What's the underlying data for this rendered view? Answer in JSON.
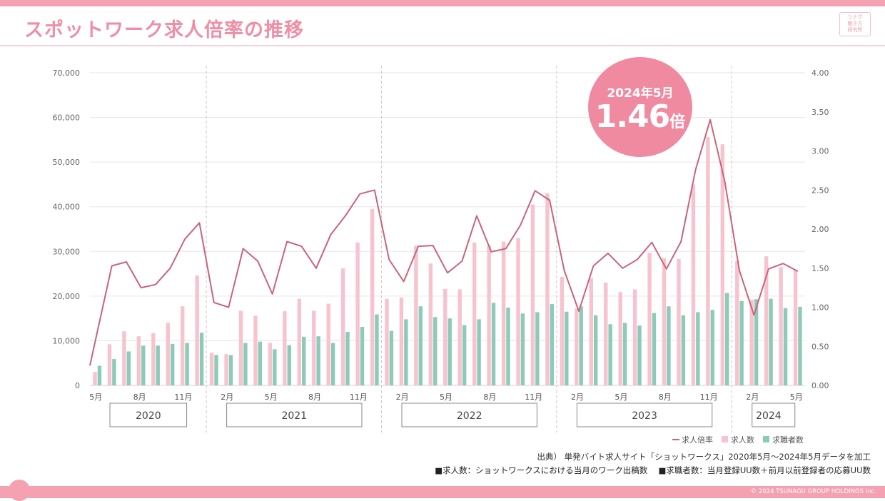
{
  "page": {
    "title": "スポットワーク求人倍率の推移",
    "logo_lines": [
      "ツナグ",
      "働き方",
      "研究所"
    ],
    "source": "出典）  単発バイト求人サイト「ショットワークス」2020年5月～2024年5月データを加工",
    "note": "■求人数：ショットワークスにおける当月のワーク出稿数　 ■求職者数：当月登録UU数＋前月以前登録者の応募UU数",
    "copyright": "© 2024 TSUNAGU GROUP HOLDINGS Inc.",
    "badge": {
      "date_label": "2024年5月",
      "value": "1.46",
      "unit": "倍"
    },
    "colors": {
      "accent": "#f4a1b2",
      "line": "#c9647b",
      "bar_jobs": "#f7c3cf",
      "bar_seekers": "#8ccbb7"
    }
  },
  "chart_data": {
    "type": "bar",
    "combo": "bar+line (line on secondary axis)",
    "title": "スポットワーク求人倍率の推移",
    "x": [
      "2020-05",
      "2020-06",
      "2020-07",
      "2020-08",
      "2020-09",
      "2020-10",
      "2020-11",
      "2020-12",
      "2021-01",
      "2021-02",
      "2021-03",
      "2021-04",
      "2021-05",
      "2021-06",
      "2021-07",
      "2021-08",
      "2021-09",
      "2021-10",
      "2021-11",
      "2021-12",
      "2022-01",
      "2022-02",
      "2022-03",
      "2022-04",
      "2022-05",
      "2022-06",
      "2022-07",
      "2022-08",
      "2022-09",
      "2022-10",
      "2022-11",
      "2022-12",
      "2023-01",
      "2023-02",
      "2023-03",
      "2023-04",
      "2023-05",
      "2023-06",
      "2023-07",
      "2023-08",
      "2023-09",
      "2023-10",
      "2023-11",
      "2023-12",
      "2024-01",
      "2024-02",
      "2024-03",
      "2024-04",
      "2024-05"
    ],
    "tick_labels": [
      {
        "month_index": 0,
        "label": "5月"
      },
      {
        "month_index": 3,
        "label": "8月"
      },
      {
        "month_index": 6,
        "label": "11月"
      },
      {
        "month_index": 9,
        "label": "2月"
      },
      {
        "month_index": 12,
        "label": "5月"
      },
      {
        "month_index": 15,
        "label": "8月"
      },
      {
        "month_index": 18,
        "label": "11月"
      },
      {
        "month_index": 21,
        "label": "2月"
      },
      {
        "month_index": 24,
        "label": "5月"
      },
      {
        "month_index": 27,
        "label": "8月"
      },
      {
        "month_index": 30,
        "label": "11月"
      },
      {
        "month_index": 33,
        "label": "2月"
      },
      {
        "month_index": 36,
        "label": "5月"
      },
      {
        "month_index": 39,
        "label": "8月"
      },
      {
        "month_index": 42,
        "label": "11月"
      },
      {
        "month_index": 45,
        "label": "2月"
      },
      {
        "month_index": 48,
        "label": "5月"
      }
    ],
    "year_groups": [
      {
        "label": "2020",
        "from": 0,
        "to": 7
      },
      {
        "label": "2021",
        "from": 8,
        "to": 19
      },
      {
        "label": "2022",
        "from": 20,
        "to": 31
      },
      {
        "label": "2023",
        "from": 32,
        "to": 43
      },
      {
        "label": "2024",
        "from": 44,
        "to": 48
      }
    ],
    "series": [
      {
        "name": "求人数",
        "kind": "bar",
        "axis": "left",
        "color": "#f7c3cf",
        "values": [
          3000,
          9200,
          12100,
          11000,
          11700,
          14000,
          17700,
          24600,
          7300,
          7000,
          16700,
          15600,
          9500,
          16600,
          19400,
          16700,
          18300,
          26200,
          32000,
          39500,
          19400,
          19700,
          31300,
          27300,
          21600,
          21500,
          32000,
          31400,
          32200,
          33000,
          40500,
          43000,
          24300,
          17200,
          24000,
          23000,
          20900,
          21500,
          29700,
          28500,
          28300,
          45000,
          55600,
          54000,
          27800,
          19200,
          28900,
          26500,
          25800
        ]
      },
      {
        "name": "求職者数",
        "kind": "bar",
        "axis": "left",
        "color": "#8ccbb7",
        "values": [
          4400,
          5900,
          7600,
          8900,
          8900,
          9300,
          9500,
          11800,
          6800,
          6800,
          9500,
          9800,
          8100,
          9000,
          10900,
          11000,
          9500,
          12000,
          13100,
          15900,
          12200,
          14800,
          17700,
          15300,
          15000,
          13500,
          14800,
          18500,
          17400,
          16100,
          16400,
          18200,
          16500,
          17700,
          15700,
          13700,
          14000,
          13400,
          16200,
          17700,
          15700,
          16400,
          16900,
          20700,
          18900,
          19300,
          19400,
          17300,
          17600
        ]
      },
      {
        "name": "求人倍率",
        "kind": "line",
        "axis": "right",
        "color": "#c9647b",
        "values": [
          0.68,
          1.53,
          1.58,
          1.25,
          1.29,
          1.5,
          1.87,
          2.08,
          1.06,
          1.0,
          1.75,
          1.59,
          1.17,
          1.84,
          1.78,
          1.5,
          1.93,
          2.17,
          2.45,
          2.5,
          1.61,
          1.33,
          1.78,
          1.79,
          1.44,
          1.59,
          2.17,
          1.71,
          1.75,
          2.05,
          2.49,
          2.37,
          1.47,
          0.95,
          1.53,
          1.69,
          1.5,
          1.61,
          1.83,
          1.49,
          1.84,
          2.76,
          3.4,
          2.61,
          1.47,
          0.9,
          1.49,
          1.56,
          1.46
        ]
      }
    ],
    "y_left": {
      "min": 0,
      "max": 70000,
      "ticks": [
        "0",
        "10,000",
        "20,000",
        "30,000",
        "40,000",
        "50,000",
        "60,000",
        "70,000"
      ]
    },
    "y_right": {
      "min": 0,
      "max": 4,
      "ticks": [
        "0.00",
        "0.50",
        "1.00",
        "1.50",
        "2.00",
        "2.50",
        "3.00",
        "3.50",
        "4.00"
      ]
    },
    "grid": true,
    "legend": {
      "placement": "bottom-right",
      "order": [
        "求人倍率",
        "求人数",
        "求職者数"
      ]
    }
  }
}
